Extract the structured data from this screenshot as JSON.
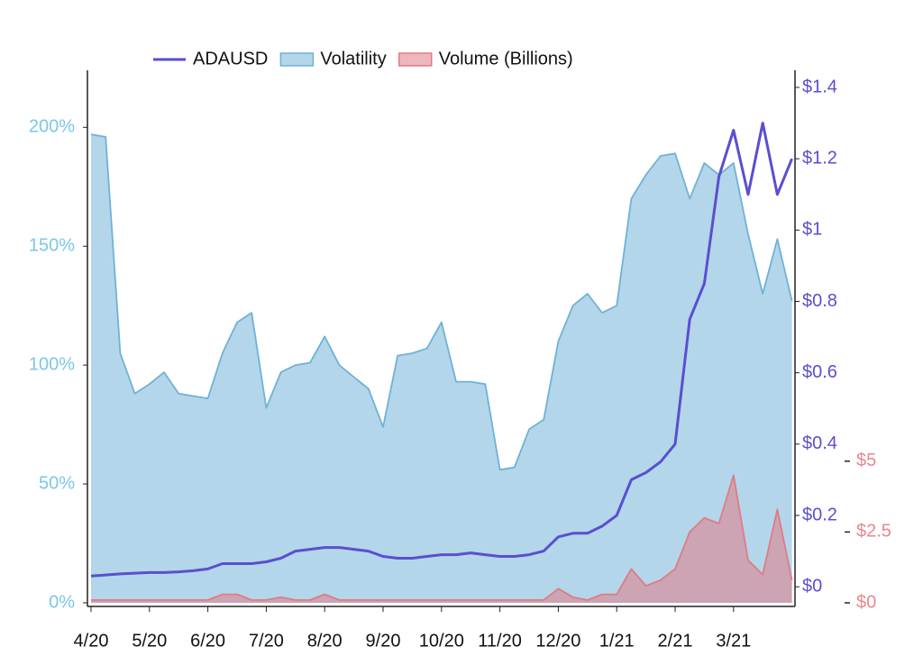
{
  "chart_data": {
    "type": "line",
    "categories": [
      "4/20",
      null,
      null,
      null,
      "5/20",
      null,
      null,
      null,
      "6/20",
      null,
      null,
      null,
      "7/20",
      null,
      null,
      null,
      "8/20",
      null,
      null,
      null,
      "9/20",
      null,
      null,
      null,
      "10/20",
      null,
      null,
      null,
      "11/20",
      null,
      null,
      null,
      "12/20",
      null,
      null,
      null,
      "1/21",
      null,
      null,
      null,
      "2/21",
      null,
      null,
      null,
      "3/21",
      null,
      null,
      null,
      null
    ],
    "series": [
      {
        "name": "ADAUSD",
        "color": "#5a4fcf",
        "axis": "y2",
        "values": [
          0.03,
          0.033,
          0.036,
          0.038,
          0.04,
          0.04,
          0.042,
          0.045,
          0.05,
          0.065,
          0.065,
          0.065,
          0.07,
          0.08,
          0.1,
          0.105,
          0.11,
          0.11,
          0.105,
          0.1,
          0.085,
          0.08,
          0.08,
          0.085,
          0.09,
          0.09,
          0.095,
          0.09,
          0.085,
          0.085,
          0.09,
          0.1,
          0.14,
          0.15,
          0.15,
          0.17,
          0.2,
          0.3,
          0.32,
          0.35,
          0.4,
          0.75,
          0.85,
          1.15,
          1.28,
          1.1,
          1.3,
          1.1,
          1.2
        ]
      },
      {
        "name": "Volatility",
        "color": "#6fb2d6",
        "axis": "y",
        "values": [
          197,
          196,
          105,
          88,
          92,
          97,
          88,
          87,
          86,
          105,
          118,
          122,
          82,
          97,
          100,
          101,
          112,
          100,
          95,
          90,
          74,
          104,
          105,
          107,
          118,
          93,
          93,
          92,
          56,
          57,
          73,
          77,
          110,
          125,
          130,
          122,
          125,
          170,
          180,
          188,
          189,
          170,
          185,
          180,
          185,
          155,
          130,
          153,
          127
        ]
      },
      {
        "name": "Volume (Billions)",
        "color": "#e07b86",
        "axis": "y3",
        "values": [
          0.1,
          0.1,
          0.1,
          0.1,
          0.1,
          0.1,
          0.1,
          0.1,
          0.1,
          0.3,
          0.3,
          0.1,
          0.1,
          0.2,
          0.1,
          0.1,
          0.3,
          0.1,
          0.1,
          0.1,
          0.1,
          0.1,
          0.1,
          0.1,
          0.1,
          0.1,
          0.1,
          0.1,
          0.1,
          0.1,
          0.1,
          0.1,
          0.5,
          0.2,
          0.1,
          0.3,
          0.3,
          1.2,
          0.6,
          0.8,
          1.2,
          2.5,
          3,
          2.8,
          4.5,
          1.5,
          1,
          3.3,
          0.8
        ]
      }
    ],
    "ylim": [
      0,
      224
    ],
    "yticks": [
      {
        "value": 0,
        "label": "0%"
      },
      {
        "value": 50,
        "label": "50%"
      },
      {
        "value": 100,
        "label": "100%"
      },
      {
        "value": 150,
        "label": "150%"
      },
      {
        "value": 200,
        "label": "200%"
      }
    ],
    "y2lim": [
      -0.045,
      1.448
    ],
    "y2ticks": [
      {
        "value": 0,
        "label": "$0"
      },
      {
        "value": 0.2,
        "label": "$0.2"
      },
      {
        "value": 0.4,
        "label": "$0.4"
      },
      {
        "value": 0.6,
        "label": "$0.6"
      },
      {
        "value": 0.8,
        "label": "$0.8"
      },
      {
        "value": 1,
        "label": "$1"
      },
      {
        "value": 1.2,
        "label": "$1.2"
      },
      {
        "value": 1.4,
        "label": "$1.4"
      }
    ],
    "y3lim": [
      0,
      18.8
    ],
    "y3ticks": [
      {
        "value": 0,
        "label": "$0"
      },
      {
        "value": 2.5,
        "label": "$2.5"
      },
      {
        "value": 5,
        "label": "$5"
      }
    ],
    "legend": "top"
  }
}
